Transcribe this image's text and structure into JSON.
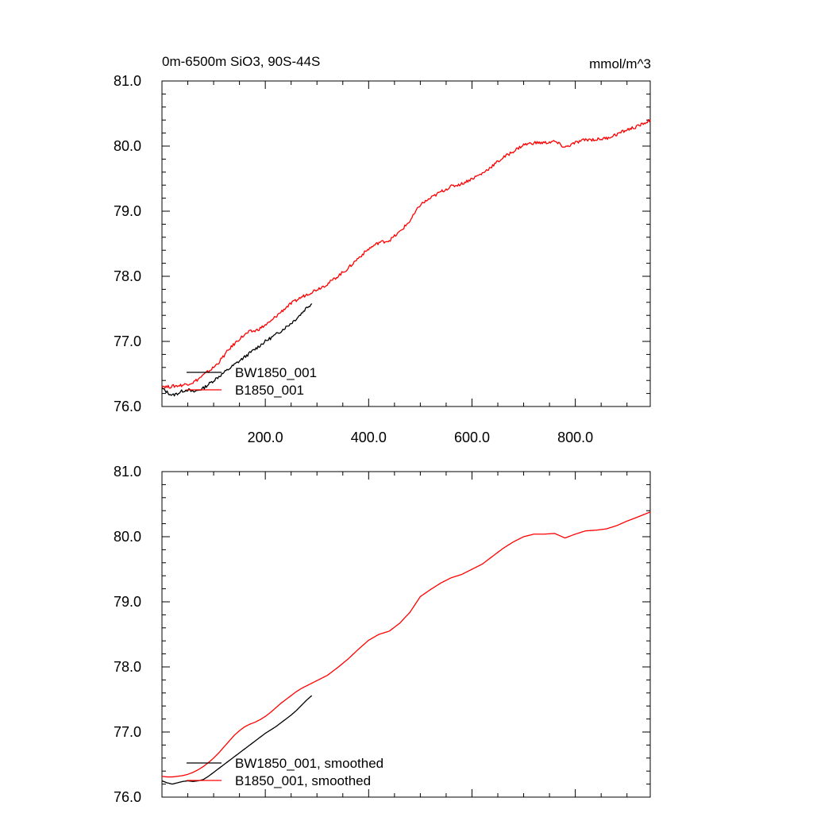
{
  "header": {
    "title": "0m-6500m SiO3, 90S-44S",
    "units": "mmol/m^3"
  },
  "colors": {
    "BW1850_001": "#000000",
    "B1850_001": "#ff0000"
  },
  "chart_data": [
    {
      "type": "line",
      "panel": "top",
      "xlim": [
        0,
        945
      ],
      "ylim": [
        76.0,
        81.0
      ],
      "x_ticks": [
        200.0,
        400.0,
        600.0,
        800.0
      ],
      "x_tick_labels": [
        "200.0",
        "400.0",
        "600.0",
        "800.0"
      ],
      "y_ticks": [
        76.0,
        77.0,
        78.0,
        79.0,
        80.0,
        81.0
      ],
      "y_tick_labels": [
        "76.0",
        "77.0",
        "78.0",
        "79.0",
        "80.0",
        "81.0"
      ],
      "legend": "lower-left",
      "series": [
        {
          "name": "BW1850_001",
          "color": "#000000",
          "x": [
            0,
            10,
            20,
            30,
            40,
            50,
            60,
            70,
            80,
            90,
            100,
            110,
            120,
            130,
            140,
            150,
            160,
            170,
            180,
            190,
            200,
            210,
            220,
            230,
            240,
            250,
            260,
            270,
            280,
            290
          ],
          "y": [
            76.28,
            76.22,
            76.17,
            76.2,
            76.24,
            76.26,
            76.22,
            76.25,
            76.28,
            76.34,
            76.4,
            76.46,
            76.52,
            76.58,
            76.64,
            76.7,
            76.76,
            76.82,
            76.88,
            76.94,
            77.0,
            77.05,
            77.1,
            77.16,
            77.22,
            77.28,
            77.35,
            77.43,
            77.52,
            77.58
          ]
        },
        {
          "name": "B1850_001",
          "color": "#ff0000",
          "x": [
            0,
            10,
            20,
            30,
            40,
            50,
            60,
            70,
            80,
            90,
            100,
            110,
            120,
            130,
            140,
            150,
            160,
            170,
            180,
            190,
            200,
            210,
            220,
            230,
            240,
            250,
            260,
            270,
            280,
            290,
            300,
            320,
            340,
            360,
            380,
            400,
            420,
            440,
            460,
            480,
            500,
            520,
            540,
            560,
            580,
            600,
            620,
            640,
            660,
            680,
            700,
            720,
            740,
            760,
            780,
            800,
            820,
            840,
            860,
            880,
            900,
            920,
            945
          ],
          "y": [
            76.32,
            76.3,
            76.31,
            76.32,
            76.33,
            76.35,
            76.37,
            76.42,
            76.48,
            76.54,
            76.6,
            76.68,
            76.78,
            76.88,
            76.96,
            77.04,
            77.1,
            77.15,
            77.16,
            77.2,
            77.25,
            77.3,
            77.38,
            77.45,
            77.52,
            77.58,
            77.63,
            77.68,
            77.72,
            77.76,
            77.8,
            77.88,
            78.0,
            78.12,
            78.28,
            78.42,
            78.52,
            78.55,
            78.68,
            78.85,
            79.1,
            79.2,
            79.3,
            79.38,
            79.42,
            79.5,
            79.58,
            79.7,
            79.82,
            79.92,
            80.02,
            80.05,
            80.05,
            80.07,
            79.98,
            80.05,
            80.1,
            80.1,
            80.12,
            80.18,
            80.25,
            80.3,
            80.4
          ]
        }
      ]
    },
    {
      "type": "line",
      "panel": "bottom",
      "xlim": [
        0,
        945
      ],
      "ylim": [
        76.0,
        81.0
      ],
      "y_ticks": [
        76.0,
        77.0,
        78.0,
        79.0,
        80.0,
        81.0
      ],
      "y_tick_labels": [
        "76.0",
        "77.0",
        "78.0",
        "79.0",
        "80.0",
        "81.0"
      ],
      "legend": "lower-left",
      "series": [
        {
          "name": "BW1850_001, smoothed",
          "color": "#000000",
          "x": [
            0,
            10,
            20,
            30,
            40,
            50,
            60,
            70,
            80,
            90,
            100,
            110,
            120,
            130,
            140,
            150,
            160,
            170,
            180,
            190,
            200,
            210,
            220,
            230,
            240,
            250,
            260,
            270,
            280,
            290
          ],
          "y": [
            76.25,
            76.22,
            76.2,
            76.22,
            76.24,
            76.25,
            76.24,
            76.25,
            76.27,
            76.32,
            76.38,
            76.44,
            76.5,
            76.56,
            76.62,
            76.68,
            76.74,
            76.8,
            76.86,
            76.92,
            76.98,
            77.03,
            77.08,
            77.14,
            77.2,
            77.26,
            77.33,
            77.41,
            77.49,
            77.56
          ]
        },
        {
          "name": "B1850_001, smoothed",
          "color": "#ff0000",
          "x": [
            0,
            10,
            20,
            30,
            40,
            50,
            60,
            70,
            80,
            90,
            100,
            110,
            120,
            130,
            140,
            150,
            160,
            170,
            180,
            190,
            200,
            210,
            220,
            230,
            240,
            250,
            260,
            270,
            280,
            290,
            300,
            320,
            340,
            360,
            380,
            400,
            420,
            440,
            460,
            480,
            500,
            520,
            540,
            560,
            580,
            600,
            620,
            640,
            660,
            680,
            700,
            720,
            740,
            760,
            780,
            800,
            820,
            840,
            860,
            880,
            900,
            920,
            945
          ],
          "y": [
            76.32,
            76.31,
            76.31,
            76.32,
            76.33,
            76.35,
            76.38,
            76.42,
            76.47,
            76.53,
            76.6,
            76.68,
            76.77,
            76.86,
            76.95,
            77.02,
            77.08,
            77.12,
            77.15,
            77.19,
            77.24,
            77.3,
            77.37,
            77.44,
            77.5,
            77.56,
            77.62,
            77.67,
            77.71,
            77.75,
            77.79,
            77.87,
            77.99,
            78.12,
            78.27,
            78.41,
            78.5,
            78.55,
            78.67,
            78.84,
            79.08,
            79.19,
            79.29,
            79.37,
            79.42,
            79.5,
            79.58,
            79.7,
            79.82,
            79.92,
            80.0,
            80.04,
            80.04,
            80.05,
            79.98,
            80.04,
            80.09,
            80.1,
            80.12,
            80.17,
            80.24,
            80.3,
            80.38
          ]
        }
      ]
    }
  ]
}
